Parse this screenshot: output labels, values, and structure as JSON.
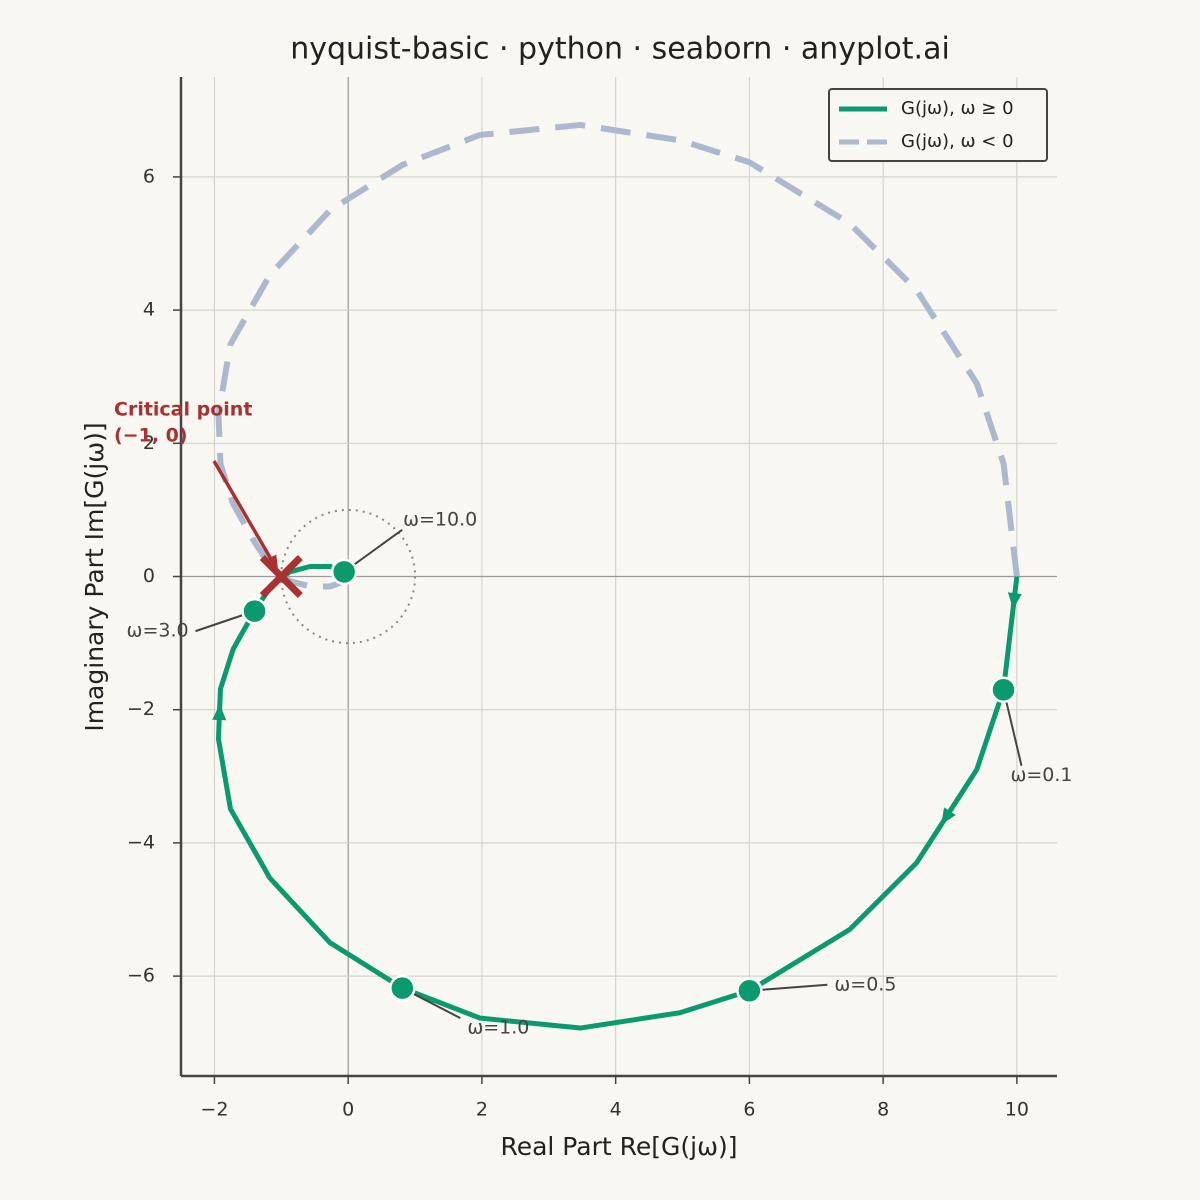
{
  "chart_data": {
    "type": "nyquist",
    "title": "nyquist-basic · python · seaborn · anyplot.ai",
    "x_label": "Real Part  Re[G(jω)]",
    "y_label": "Imaginary Part  Im[G(jω)]",
    "xlim": [
      -2.5,
      10.6
    ],
    "ylim": [
      -7.5,
      7.5
    ],
    "xticks": [
      {
        "value": -2,
        "label": "−2"
      },
      0,
      2,
      4,
      6,
      8,
      10
    ],
    "yticks": [
      {
        "value": -6,
        "label": "−6"
      },
      {
        "value": -4,
        "label": "−4"
      },
      {
        "value": -2,
        "label": "−2"
      },
      0,
      2,
      4,
      6
    ],
    "grid": true,
    "legend": "upper right",
    "series": [
      {
        "name": "G(jω), ω ≥ 0",
        "color": "#0a9a6e",
        "dashed": false,
        "x": [
          10,
          9.8,
          9.4,
          8.5,
          7.5,
          6.0,
          4.96,
          3.47,
          1.97,
          0.81,
          -0.27,
          -1.17,
          -1.76,
          -1.94,
          -1.91,
          -1.72,
          -1.4,
          -1.14,
          -0.87,
          -0.57,
          -0.27,
          -0.06
        ],
        "y": [
          0,
          -1.7,
          -2.9,
          -4.3,
          -5.3,
          -6.22,
          -6.55,
          -6.78,
          -6.63,
          -6.18,
          -5.5,
          -4.53,
          -3.49,
          -2.44,
          -1.69,
          -1.09,
          -0.52,
          -0.12,
          0.07,
          0.15,
          0.15,
          0.07
        ]
      },
      {
        "name": "G(jω), ω < 0",
        "color": "#aab8d0",
        "dashed": true,
        "x": [
          10,
          9.8,
          9.4,
          8.5,
          7.5,
          6.0,
          4.96,
          3.47,
          1.97,
          0.81,
          -0.27,
          -1.17,
          -1.76,
          -1.94,
          -1.91,
          -1.72,
          -1.4,
          -1.14,
          -0.87,
          -0.57,
          -0.27,
          -0.06
        ],
        "y": [
          0,
          1.7,
          2.9,
          4.3,
          5.3,
          6.22,
          6.55,
          6.78,
          6.63,
          6.18,
          5.5,
          4.53,
          3.49,
          2.44,
          1.69,
          1.09,
          0.52,
          0.12,
          -0.07,
          -0.15,
          -0.15,
          -0.07
        ]
      }
    ],
    "frequency_markers": {
      "color": "#0a9a6e",
      "labels": [
        "ω=0.1",
        "ω=0.5",
        "ω=1.0",
        "ω=3.0",
        "ω=10.0"
      ],
      "x": [
        9.8,
        6.0,
        0.81,
        -1.4,
        -0.06
      ],
      "y": [
        -1.7,
        -6.22,
        -6.18,
        -0.52,
        0.07
      ]
    },
    "unit_circle": {
      "center": [
        0,
        0
      ],
      "radius": 1
    },
    "critical_point": {
      "x": -1,
      "y": 0,
      "color": "#a83232",
      "label": [
        "Critical point",
        "(−1, 0)"
      ]
    }
  }
}
